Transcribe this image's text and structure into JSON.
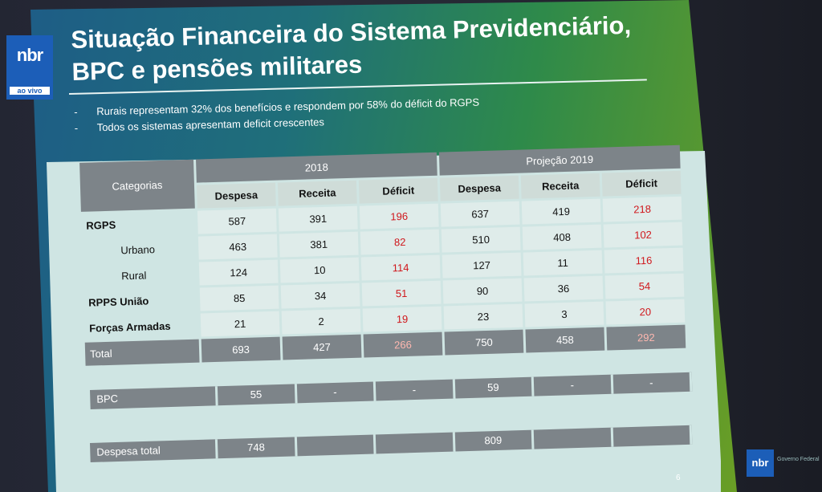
{
  "overlay": {
    "channel_logo": "nbr",
    "live_label": "ao vivo",
    "bottom_logo": "nbr",
    "bottom_logo_text": "Governo Federal"
  },
  "slide": {
    "title_line1": "Situação Financeira do Sistema Previdenciário,",
    "title_line2": "BPC e pensões militares",
    "bullets": [
      "Rurais representam 32% dos benefícios e respondem por 58% do déficit do RGPS",
      "Todos os sistemas apresentam deficit crescentes"
    ],
    "page_number": "6"
  },
  "table": {
    "category_header": "Categorias",
    "group_2018": "2018",
    "group_2019": "Projeção 2019",
    "columns": [
      "Despesa",
      "Receita",
      "Déficit",
      "Despesa",
      "Receita",
      "Déficit"
    ],
    "rows": [
      {
        "label": "RGPS",
        "values": [
          "587",
          "391",
          "196",
          "637",
          "419",
          "218"
        ]
      },
      {
        "label": "Urbano",
        "values": [
          "463",
          "381",
          "82",
          "510",
          "408",
          "102"
        ]
      },
      {
        "label": "Rural",
        "values": [
          "124",
          "10",
          "114",
          "127",
          "11",
          "116"
        ]
      },
      {
        "label": "RPPS União",
        "values": [
          "85",
          "34",
          "51",
          "90",
          "36",
          "54"
        ]
      },
      {
        "label": "Forças Armadas",
        "values": [
          "21",
          "2",
          "19",
          "23",
          "3",
          "20"
        ]
      },
      {
        "label": "Total",
        "values": [
          "693",
          "427",
          "266",
          "750",
          "458",
          "292"
        ]
      }
    ],
    "bpc": {
      "label": "BPC",
      "values": [
        "55",
        "-",
        "-",
        "59",
        "-",
        "-"
      ]
    },
    "despesa_total": {
      "label": "Despesa total",
      "values": [
        "748",
        "",
        "",
        "809",
        "",
        ""
      ]
    }
  },
  "colors": {
    "deficit": "#d0161b",
    "header_gray": "#7d8489",
    "slide_blue": "#1e5d86",
    "slide_green": "#6a9e25"
  }
}
